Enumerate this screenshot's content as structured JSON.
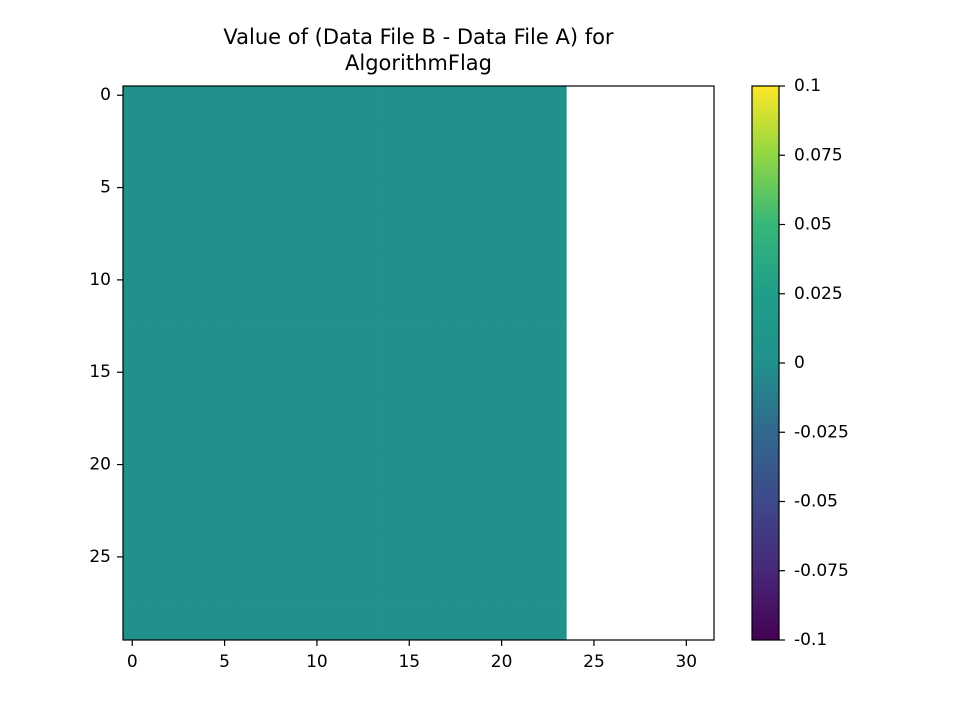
{
  "chart_data": {
    "type": "heatmap",
    "title": "Value of (Data File B - Data File A) for\nAlgorithmFlag",
    "colormap": "viridis",
    "xlim": [
      -0.5,
      31.5
    ],
    "xticks": [
      0,
      5,
      10,
      15,
      20,
      25,
      30
    ],
    "ylim": [
      29.5,
      -0.5
    ],
    "yticks": [
      0,
      5,
      10,
      15,
      20,
      25
    ],
    "clim": [
      -0.1,
      0.1
    ],
    "cticks": [
      -0.1,
      -0.075,
      -0.05,
      -0.025,
      0,
      0.025,
      0.05,
      0.075,
      0.1
    ],
    "values": [
      [
        0,
        0,
        0,
        0,
        0,
        0,
        0,
        0,
        0,
        0,
        0,
        0,
        0,
        0,
        0,
        0,
        0,
        0,
        0,
        0,
        0,
        0,
        0,
        0,
        null,
        null,
        null,
        null,
        null,
        null,
        null,
        null
      ],
      [
        0,
        0,
        0,
        0,
        0,
        0,
        0,
        0,
        0,
        0,
        0,
        0,
        0,
        0,
        0,
        0,
        0,
        0,
        0,
        0,
        0,
        0,
        0,
        0,
        null,
        null,
        null,
        null,
        null,
        null,
        null,
        null
      ],
      [
        0,
        0,
        0,
        0,
        0,
        0,
        0,
        0,
        0,
        0,
        0,
        0,
        0,
        0,
        0,
        0,
        0,
        0,
        0,
        0,
        0,
        0,
        0,
        0,
        null,
        null,
        null,
        null,
        null,
        null,
        null,
        null
      ],
      [
        0,
        0,
        0,
        0,
        0,
        0,
        0,
        0,
        0,
        0,
        0,
        0,
        0,
        0,
        0,
        0,
        0,
        0,
        0,
        0,
        0,
        0,
        0,
        0,
        null,
        null,
        null,
        null,
        null,
        null,
        null,
        null
      ],
      [
        0,
        0,
        0,
        0,
        0,
        0,
        0,
        0,
        0,
        0,
        0,
        0,
        0,
        0,
        0,
        0,
        0,
        0,
        0,
        0,
        0,
        0,
        0,
        0,
        null,
        null,
        null,
        null,
        null,
        null,
        null,
        null
      ],
      [
        0,
        0,
        0,
        0,
        0,
        0,
        0,
        0,
        0,
        0,
        0,
        0,
        0,
        0,
        0,
        0,
        0,
        0,
        0,
        0,
        0,
        0,
        0,
        0,
        null,
        null,
        null,
        null,
        null,
        null,
        null,
        null
      ],
      [
        0,
        0,
        0,
        0,
        0,
        0,
        0,
        0,
        0,
        0,
        0,
        0,
        0,
        0,
        0,
        0,
        0,
        0,
        0,
        0,
        0,
        0,
        0,
        0,
        null,
        null,
        null,
        null,
        null,
        null,
        null,
        null
      ],
      [
        0,
        0,
        0,
        0,
        0,
        0,
        0,
        0,
        0,
        0,
        0,
        0,
        0,
        0,
        0,
        0,
        0,
        0,
        0,
        0,
        0,
        0,
        0,
        0,
        null,
        null,
        null,
        null,
        null,
        null,
        null,
        null
      ],
      [
        0,
        0,
        0,
        0,
        0,
        0,
        0,
        0,
        0,
        0,
        0,
        0,
        0,
        0,
        0,
        0,
        0,
        0,
        0,
        0,
        0,
        0,
        0,
        0,
        null,
        null,
        null,
        null,
        null,
        null,
        null,
        null
      ],
      [
        0,
        0,
        0,
        0,
        0,
        0,
        0,
        0,
        0,
        0,
        0,
        0,
        0,
        0,
        0,
        0,
        0,
        0,
        0,
        0,
        0,
        0,
        0,
        0,
        null,
        null,
        null,
        null,
        null,
        null,
        null,
        null
      ],
      [
        0,
        0,
        0,
        0,
        0,
        0,
        0,
        0,
        0,
        0,
        0,
        0,
        0,
        0,
        0,
        0,
        0,
        0,
        0,
        0,
        0,
        0,
        0,
        0,
        null,
        null,
        null,
        null,
        null,
        null,
        null,
        null
      ],
      [
        0,
        0,
        0,
        0,
        0,
        0,
        0,
        0,
        0,
        0,
        0,
        0,
        0,
        0,
        0,
        0,
        0,
        0,
        0,
        0,
        0,
        0,
        0,
        0,
        null,
        null,
        null,
        null,
        null,
        null,
        null,
        null
      ],
      [
        0,
        0,
        0,
        0,
        0,
        0,
        0,
        0,
        0,
        0,
        0,
        0,
        0,
        0,
        0,
        0,
        0,
        0,
        0,
        0,
        0,
        0,
        0,
        0,
        null,
        null,
        null,
        null,
        null,
        null,
        null,
        null
      ],
      [
        0,
        0,
        0,
        0,
        0,
        0,
        0,
        0,
        0,
        0,
        0,
        0,
        0,
        0,
        0,
        0,
        0,
        0,
        0,
        0,
        0,
        0,
        0,
        0,
        null,
        null,
        null,
        null,
        null,
        null,
        null,
        null
      ],
      [
        0,
        0,
        0,
        0,
        0,
        0,
        0,
        0,
        0,
        0,
        0,
        0,
        0,
        0,
        0,
        0,
        0,
        0,
        0,
        0,
        0,
        0,
        0,
        0,
        null,
        null,
        null,
        null,
        null,
        null,
        null,
        null
      ],
      [
        0,
        0,
        0,
        0,
        0,
        0,
        0,
        0,
        0,
        0,
        0,
        0,
        0,
        0,
        0,
        0,
        0,
        0,
        0,
        0,
        0,
        0,
        0,
        0,
        null,
        null,
        null,
        null,
        null,
        null,
        null,
        null
      ],
      [
        0,
        0,
        0,
        0,
        0,
        0,
        0,
        0,
        0,
        0,
        0,
        0,
        0,
        0,
        0,
        0,
        0,
        0,
        0,
        0,
        0,
        0,
        0,
        0,
        null,
        null,
        null,
        null,
        null,
        null,
        null,
        null
      ],
      [
        0,
        0,
        0,
        0,
        0,
        0,
        0,
        0,
        0,
        0,
        0,
        0,
        0,
        0,
        0,
        0,
        0,
        0,
        0,
        0,
        0,
        0,
        0,
        0,
        null,
        null,
        null,
        null,
        null,
        null,
        null,
        null
      ],
      [
        0,
        0,
        0,
        0,
        0,
        0,
        0,
        0,
        0,
        0,
        0,
        0,
        0,
        0,
        0,
        0,
        0,
        0,
        0,
        0,
        0,
        0,
        0,
        0,
        null,
        null,
        null,
        null,
        null,
        null,
        null,
        null
      ],
      [
        0,
        0,
        0,
        0,
        0,
        0,
        0,
        0,
        0,
        0,
        0,
        0,
        0,
        0,
        0,
        0,
        0,
        0,
        0,
        0,
        0,
        0,
        0,
        0,
        null,
        null,
        null,
        null,
        null,
        null,
        null,
        null
      ],
      [
        0,
        0,
        0,
        0,
        0,
        0,
        0,
        0,
        0,
        0,
        0,
        0,
        0,
        0,
        0,
        0,
        0,
        0,
        0,
        0,
        0,
        0,
        0,
        0,
        null,
        null,
        null,
        null,
        null,
        null,
        null,
        null
      ],
      [
        0,
        0,
        0,
        0,
        0,
        0,
        0,
        0,
        0,
        0,
        0,
        0,
        0,
        0,
        0,
        0,
        0,
        0,
        0,
        0,
        0,
        0,
        0,
        0,
        null,
        null,
        null,
        null,
        null,
        null,
        null,
        null
      ],
      [
        0,
        0,
        0,
        0,
        0,
        0,
        0,
        0,
        0,
        0,
        0,
        0,
        0,
        0,
        0,
        0,
        0,
        0,
        0,
        0,
        0,
        0,
        0,
        0,
        null,
        null,
        null,
        null,
        null,
        null,
        null,
        null
      ],
      [
        0,
        0,
        0,
        0,
        0,
        0,
        0,
        0,
        0,
        0,
        0,
        0,
        0,
        0,
        0,
        0,
        0,
        0,
        0,
        0,
        0,
        0,
        0,
        0,
        null,
        null,
        null,
        null,
        null,
        null,
        null,
        null
      ],
      [
        0,
        0,
        0,
        0,
        0,
        0,
        0,
        0,
        0,
        0,
        0,
        0,
        0,
        0,
        0,
        0,
        0,
        0,
        0,
        0,
        0,
        0,
        0,
        0,
        null,
        null,
        null,
        null,
        null,
        null,
        null,
        null
      ],
      [
        0,
        0,
        0,
        0,
        0,
        0,
        0,
        0,
        0,
        0,
        0,
        0,
        0,
        0,
        0,
        0,
        0,
        0,
        0,
        0,
        0,
        0,
        0,
        0,
        null,
        null,
        null,
        null,
        null,
        null,
        null,
        null
      ],
      [
        0,
        0,
        0,
        0,
        0,
        0,
        0,
        0,
        0,
        0,
        0,
        0,
        0,
        0,
        0,
        0,
        0,
        0,
        0,
        0,
        0,
        0,
        0,
        0,
        null,
        null,
        null,
        null,
        null,
        null,
        null,
        null
      ],
      [
        0,
        0,
        0,
        0,
        0,
        0,
        0,
        0,
        0,
        0,
        0,
        0,
        0,
        0,
        0,
        0,
        0,
        0,
        0,
        0,
        0,
        0,
        0,
        0,
        null,
        null,
        null,
        null,
        null,
        null,
        null,
        null
      ],
      [
        0,
        0,
        0,
        0,
        0,
        0,
        0,
        0,
        0,
        0,
        0,
        0,
        0,
        0,
        0,
        0,
        0,
        0,
        0,
        0,
        0,
        0,
        0,
        0,
        null,
        null,
        null,
        null,
        null,
        null,
        null,
        null
      ],
      [
        0,
        0,
        0,
        0,
        0,
        0,
        0,
        0,
        0,
        0,
        0,
        0,
        0,
        0,
        0,
        0,
        0,
        0,
        0,
        0,
        0,
        0,
        0,
        0,
        null,
        null,
        null,
        null,
        null,
        null,
        null,
        null
      ]
    ]
  }
}
